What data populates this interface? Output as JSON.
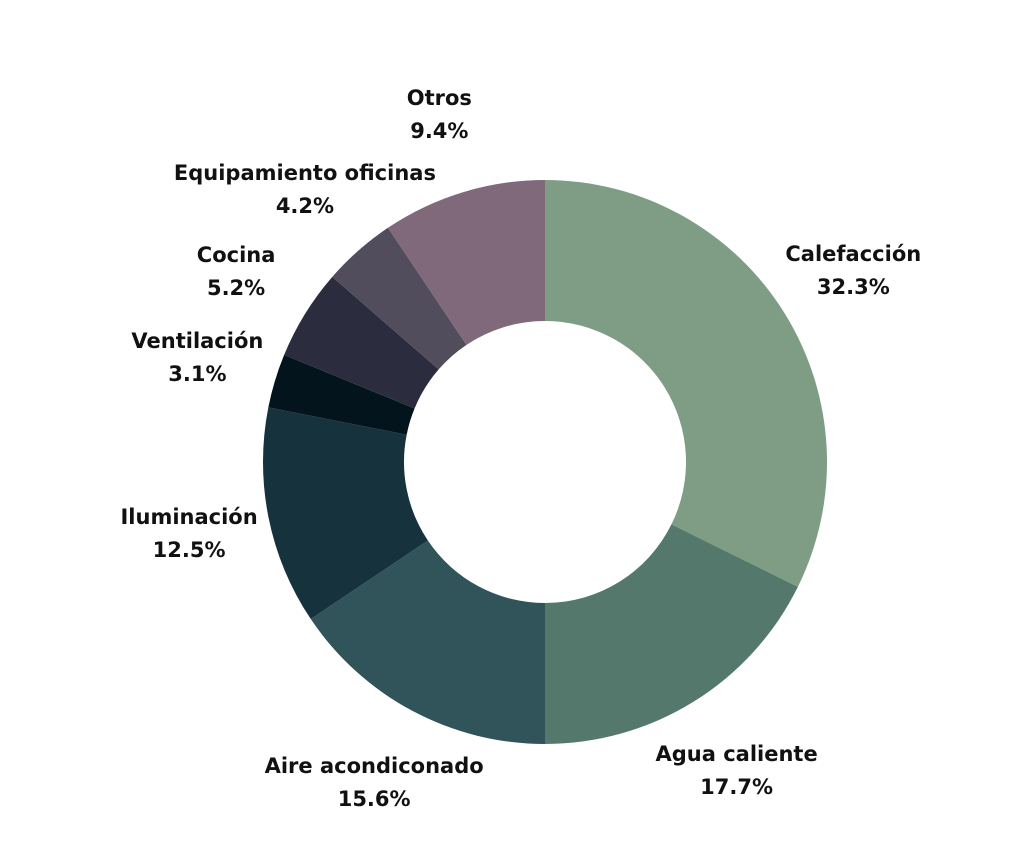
{
  "chart_data": {
    "type": "pie",
    "donut": true,
    "title": "",
    "slices": [
      {
        "label": "Calefacción",
        "value": 32.3,
        "value_label": "32.3%",
        "color": "#7f9c85"
      },
      {
        "label": "Agua caliente",
        "value": 17.7,
        "value_label": "17.7%",
        "color": "#54786c"
      },
      {
        "label": "Aire acondiconado",
        "value": 15.6,
        "value_label": "15.6%",
        "color": "#31535a"
      },
      {
        "label": "Iluminación",
        "value": 12.5,
        "value_label": "12.5%",
        "color": "#15323d"
      },
      {
        "label": "Ventilación",
        "value": 3.1,
        "value_label": "3.1%",
        "color": "#03141c"
      },
      {
        "label": "Cocina",
        "value": 5.2,
        "value_label": "5.2%",
        "color": "#2b2c3d"
      },
      {
        "label": "Equipamiento oficinas",
        "value": 4.2,
        "value_label": "4.2%",
        "color": "#514d5d"
      },
      {
        "label": "Otros",
        "value": 9.4,
        "value_label": "9.4%",
        "color": "#80697a"
      }
    ]
  }
}
